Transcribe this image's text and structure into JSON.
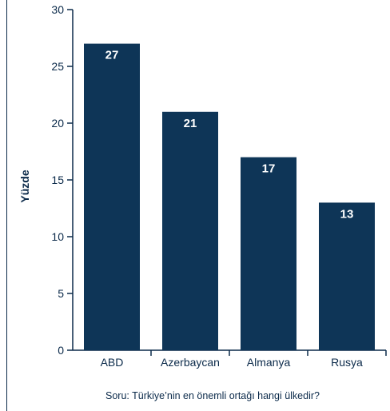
{
  "chart_data": {
    "type": "bar",
    "categories": [
      "ABD",
      "Azerbaycan",
      "Almanya",
      "Rusya"
    ],
    "values": [
      27,
      21,
      17,
      13
    ],
    "data_labels": [
      "27",
      "21",
      "17",
      "13"
    ],
    "title": "",
    "xlabel": "",
    "ylabel": "Yüzde",
    "ylim": [
      0,
      30
    ],
    "yticks": [
      0,
      5,
      10,
      15,
      20,
      25,
      30
    ],
    "ytick_labels": [
      "0",
      "5",
      "10",
      "15",
      "20",
      "25",
      "30"
    ],
    "caption": "Soru: Türkiye’nin en önemli ortağı hangi ülkedir?",
    "grid": false,
    "legend": "none",
    "bar_color": "#0e3557",
    "axis_color": "#0b2a4a",
    "label_color": "#ffffff"
  }
}
